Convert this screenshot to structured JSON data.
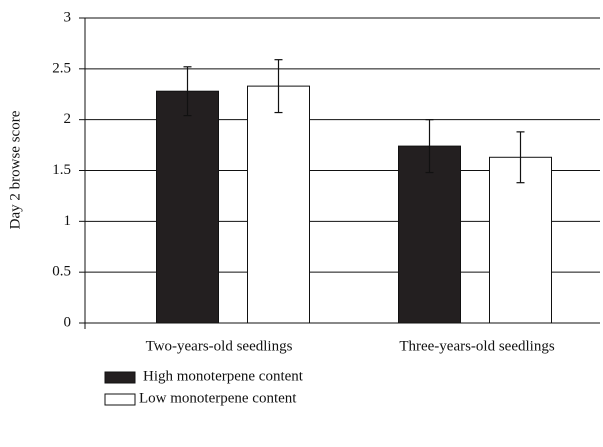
{
  "chart_data": {
    "type": "bar",
    "y_label": "Day 2 browse score",
    "categories": [
      "Two-years-old seedlings",
      "Three-years-old seedlings"
    ],
    "series": [
      {
        "name": "High monoterpene content",
        "color": "#231f20",
        "values": [
          2.28,
          1.74
        ],
        "errors": [
          0.24,
          0.26
        ]
      },
      {
        "name": "Low monoterpene content",
        "color": "#ffffff",
        "values": [
          2.33,
          1.63
        ],
        "errors": [
          0.26,
          0.25
        ]
      }
    ],
    "ylim": [
      0,
      3
    ],
    "yticks": [
      0,
      0.5,
      1,
      1.5,
      2,
      2.5,
      3
    ],
    "grid": true
  }
}
